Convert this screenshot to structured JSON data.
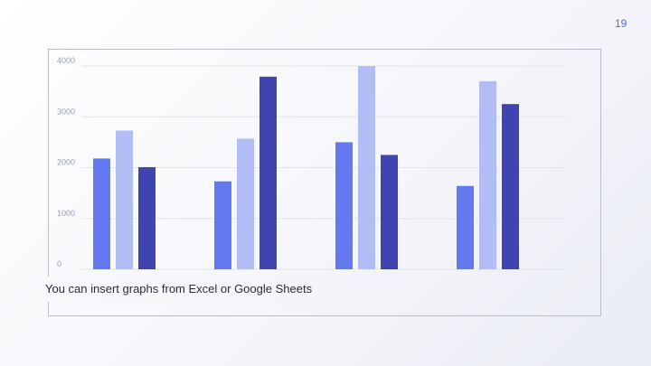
{
  "slide": {
    "number": "19"
  },
  "caption": "You can insert graphs from Excel or Google Sheets",
  "colors": {
    "series1": "#6478f0",
    "series2": "#b2bcf5",
    "series3": "#3f44b0",
    "grid": "#e2e4ee",
    "accent": "#5b6bd6"
  },
  "chart_data": {
    "type": "bar",
    "categories": [
      "",
      "",
      "",
      ""
    ],
    "series": [
      {
        "values": [
          2180,
          1730,
          2500,
          1640
        ]
      },
      {
        "values": [
          2730,
          2570,
          4000,
          3700
        ]
      },
      {
        "values": [
          2010,
          3790,
          2250,
          3250
        ]
      }
    ],
    "ylim": [
      0,
      4000
    ],
    "yticks": [
      "0",
      "1000",
      "2000",
      "3000",
      "4000"
    ],
    "grid": true,
    "legend": "none"
  }
}
